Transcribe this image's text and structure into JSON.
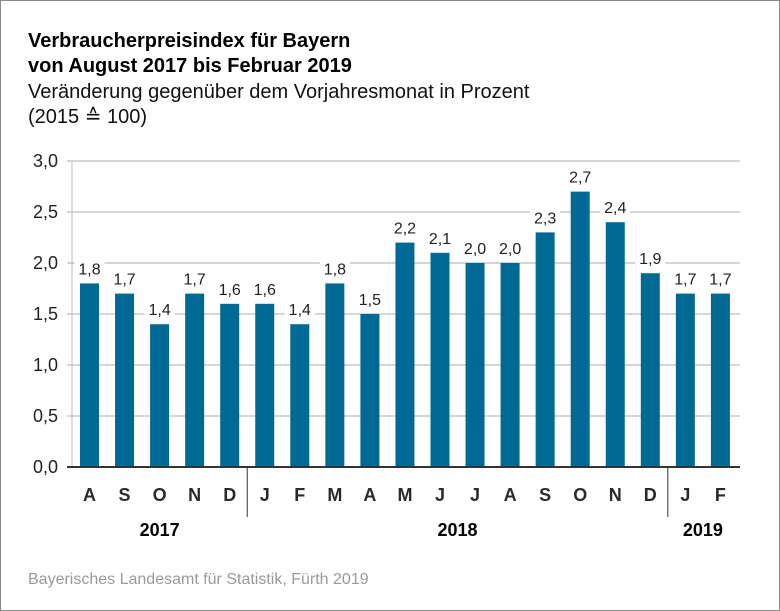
{
  "header": {
    "title_line1": "Verbraucherpreisindex für Bayern",
    "title_line2": "von August 2017 bis Februar 2019",
    "subtitle_line1": "Veränderung gegenüber dem Vorjahresmonat in Prozent",
    "subtitle_line2": "(2015 ≙ 100)"
  },
  "footer": {
    "source": "Bayerisches Landesamt für Statistik, Fürth 2019"
  },
  "colors": {
    "bar": "#006a94",
    "grid": "#c8c8c8",
    "axis": "#333333"
  },
  "chart_data": {
    "type": "bar",
    "title": "Verbraucherpreisindex für Bayern von August 2017 bis Februar 2019",
    "subtitle": "Veränderung gegenüber dem Vorjahresmonat in Prozent (2015 ≙ 100)",
    "xlabel": "",
    "ylabel": "",
    "ylim": [
      0,
      3.0
    ],
    "yticks": [
      0,
      0.5,
      1.0,
      1.5,
      2.0,
      2.5,
      3.0
    ],
    "ytick_labels": [
      "0,0",
      "0,5",
      "1,0",
      "1,5",
      "2,0",
      "2,5",
      "3,0"
    ],
    "grid": true,
    "categories": [
      "A",
      "S",
      "O",
      "N",
      "D",
      "J",
      "F",
      "M",
      "A",
      "M",
      "J",
      "J",
      "A",
      "S",
      "O",
      "N",
      "D",
      "J",
      "F"
    ],
    "values": [
      1.8,
      1.7,
      1.4,
      1.7,
      1.6,
      1.6,
      1.4,
      1.8,
      1.5,
      2.2,
      2.1,
      2.0,
      2.0,
      2.3,
      2.7,
      2.4,
      1.9,
      1.7,
      1.7
    ],
    "value_labels": [
      "1,8",
      "1,7",
      "1,4",
      "1,7",
      "1,6",
      "1,6",
      "1,4",
      "1,8",
      "1,5",
      "2,2",
      "2,1",
      "2,0",
      "2,0",
      "2,3",
      "2,7",
      "2,4",
      "1,9",
      "1,7",
      "1,7"
    ],
    "year_groups": [
      {
        "label": "2017",
        "start": 0,
        "end": 4
      },
      {
        "label": "2018",
        "start": 5,
        "end": 16
      },
      {
        "label": "2019",
        "start": 17,
        "end": 18
      }
    ]
  }
}
